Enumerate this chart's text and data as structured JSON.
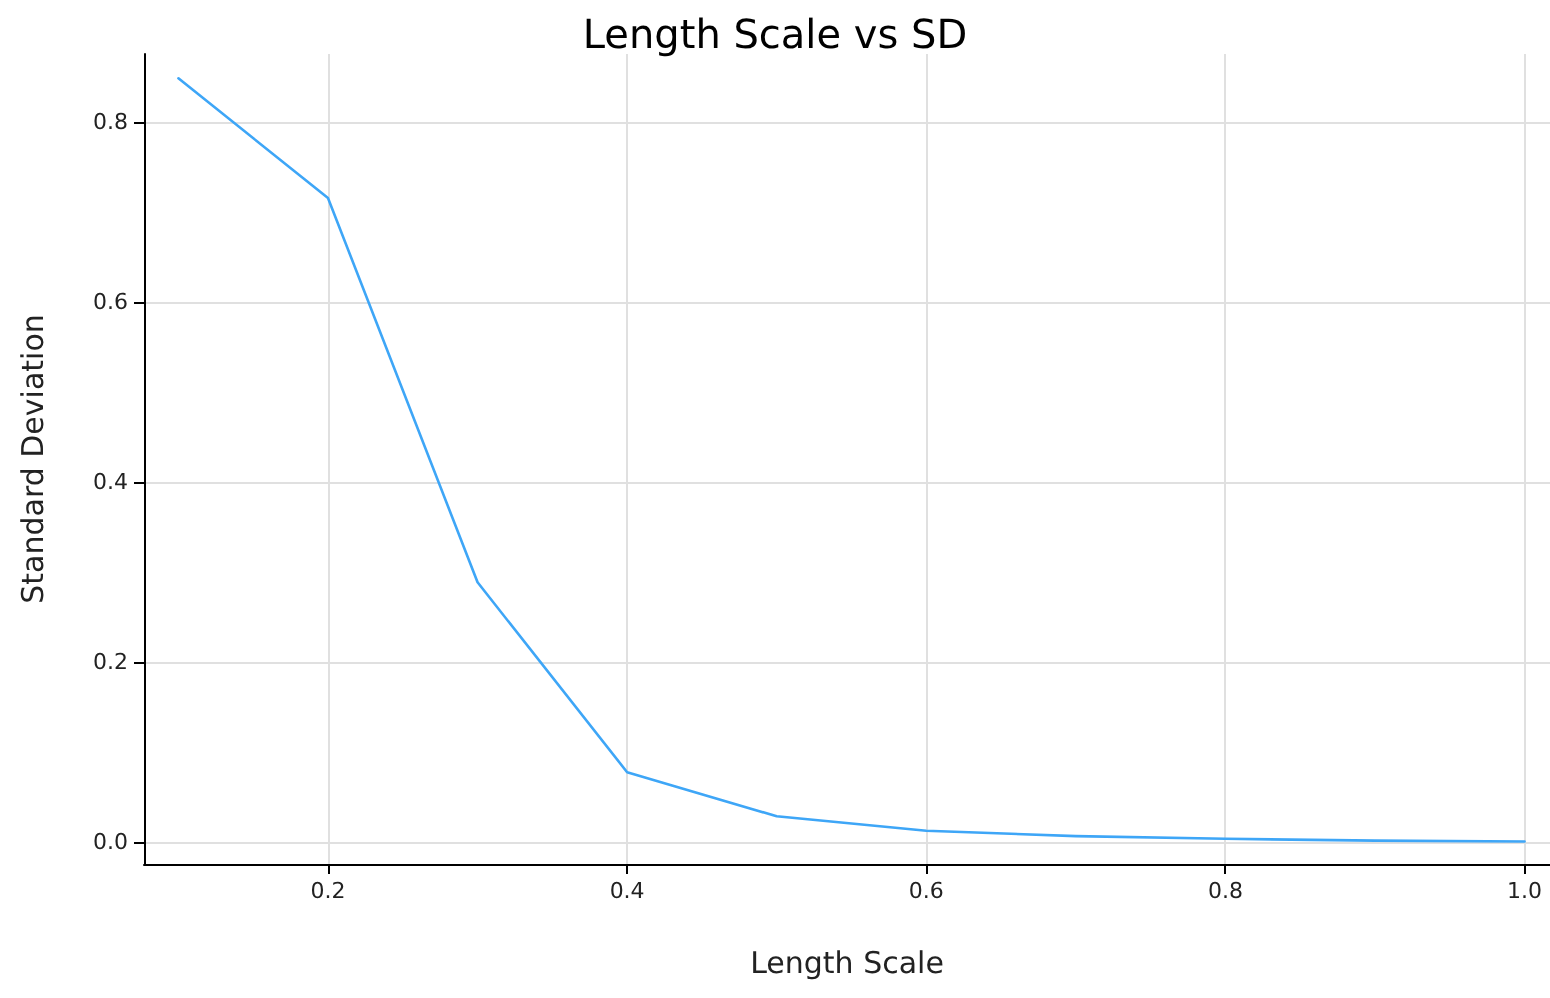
{
  "chart_data": {
    "type": "line",
    "title": "Length Scale vs SD",
    "xlabel": "Length Scale",
    "ylabel": "Standard Deviation",
    "x": [
      0.1,
      0.2,
      0.3,
      0.4,
      0.5,
      0.6,
      0.7,
      0.8,
      0.9,
      1.0
    ],
    "series": [
      {
        "color": "#3ea6f7",
        "values": [
          0.849,
          0.716,
          0.289,
          0.078,
          0.029,
          0.013,
          0.007,
          0.004,
          0.002,
          0.001
        ]
      }
    ],
    "xlim": [
      0.077,
      1.017
    ],
    "xticks": [
      0.2,
      0.4,
      0.6,
      0.8,
      {
        "value": 1,
        "label": "1.0"
      }
    ],
    "ylim": [
      -0.024,
      0.876
    ],
    "yticks": [
      {
        "value": 0,
        "label": "0.0"
      },
      0.2,
      0.4,
      0.6,
      0.8
    ],
    "grid": true,
    "marker": "none",
    "line_style": "solid"
  }
}
